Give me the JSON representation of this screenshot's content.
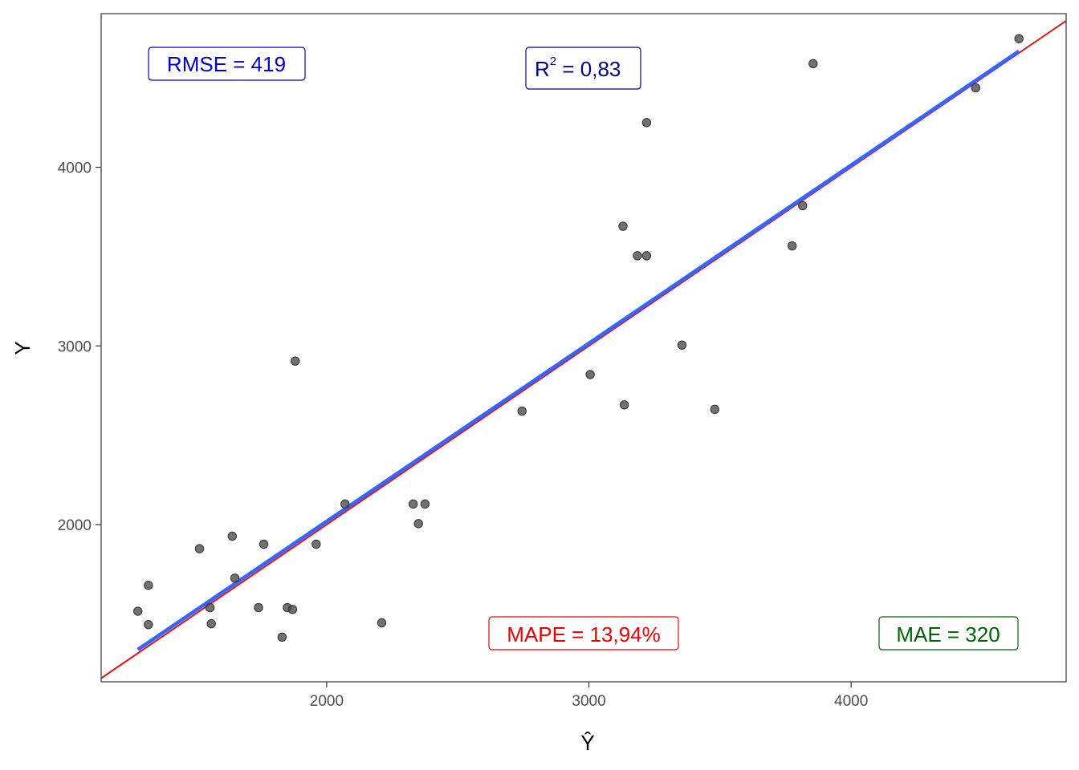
{
  "chart_data": {
    "type": "scatter",
    "title": "",
    "xlabel": "Ŷ",
    "ylabel": "Y",
    "xlim": [
      1140,
      4820
    ],
    "ylim": [
      1120,
      4860
    ],
    "x_ticks": [
      2000,
      3000,
      4000
    ],
    "y_ticks": [
      2000,
      3000,
      4000
    ],
    "grid": false,
    "points": [
      {
        "x": 1280,
        "y": 1515
      },
      {
        "x": 1320,
        "y": 1660
      },
      {
        "x": 1320,
        "y": 1440
      },
      {
        "x": 1515,
        "y": 1865
      },
      {
        "x": 1555,
        "y": 1535
      },
      {
        "x": 1560,
        "y": 1445
      },
      {
        "x": 1640,
        "y": 1935
      },
      {
        "x": 1650,
        "y": 1700
      },
      {
        "x": 1740,
        "y": 1535
      },
      {
        "x": 1760,
        "y": 1890
      },
      {
        "x": 1830,
        "y": 1370
      },
      {
        "x": 1850,
        "y": 1535
      },
      {
        "x": 1870,
        "y": 1525
      },
      {
        "x": 1880,
        "y": 2915
      },
      {
        "x": 1960,
        "y": 1890
      },
      {
        "x": 2070,
        "y": 2115
      },
      {
        "x": 2210,
        "y": 1450
      },
      {
        "x": 2330,
        "y": 2115
      },
      {
        "x": 2350,
        "y": 2005
      },
      {
        "x": 2375,
        "y": 2115
      },
      {
        "x": 2745,
        "y": 2635
      },
      {
        "x": 3005,
        "y": 2840
      },
      {
        "x": 3130,
        "y": 3670
      },
      {
        "x": 3135,
        "y": 2670
      },
      {
        "x": 3185,
        "y": 3505
      },
      {
        "x": 3220,
        "y": 3505
      },
      {
        "x": 3220,
        "y": 4250
      },
      {
        "x": 3355,
        "y": 3005
      },
      {
        "x": 3480,
        "y": 2645
      },
      {
        "x": 3775,
        "y": 3560
      },
      {
        "x": 3815,
        "y": 3785
      },
      {
        "x": 3855,
        "y": 4580
      },
      {
        "x": 4475,
        "y": 4445
      },
      {
        "x": 4640,
        "y": 4720
      }
    ],
    "identity_line": {
      "color": "#ee1111"
    },
    "fit_line": {
      "x": [
        1280,
        4640
      ],
      "y": [
        1300,
        4650
      ],
      "color": "#3366ff"
    },
    "annotations": {
      "rmse": {
        "text": "RMSE =  419",
        "color": "#0000cc"
      },
      "r2_base": "R",
      "r2_sup": "2",
      "r2_value": " = 0,83",
      "r2_color": "#00008b",
      "mape": {
        "text": "MAPE = 13,94%",
        "color": "#ee0000"
      },
      "mae": {
        "text": "MAE =  320",
        "color": "#006400"
      }
    },
    "point_color": "#4d4d4d"
  }
}
